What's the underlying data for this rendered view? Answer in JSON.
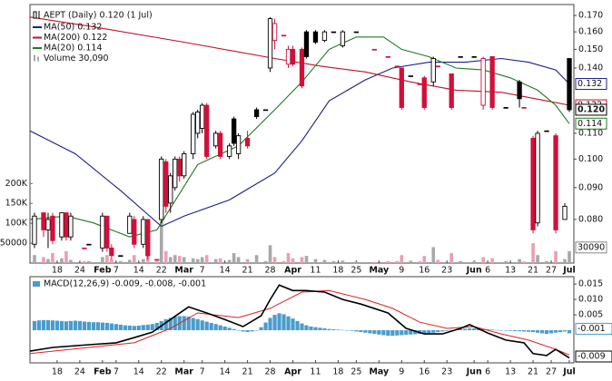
{
  "chart_data": [
    {
      "type": "candlestick",
      "title": "AEPT (Daily) 0.120 (1 Jul)",
      "log_scale": true,
      "up_color": "#000000",
      "down_color": "#d0103a",
      "last_label": "0.120",
      "x": [
        -5,
        -3,
        -2,
        -1,
        1,
        2,
        3,
        6,
        7,
        10,
        11,
        12,
        14,
        16,
        17,
        19,
        20,
        22,
        23,
        24,
        25,
        26,
        27,
        28,
        30,
        31,
        32,
        33,
        35,
        36,
        38,
        39,
        40,
        42,
        44,
        46,
        47,
        48,
        50,
        51,
        52,
        54,
        55,
        57,
        59,
        61,
        63,
        66,
        70,
        73,
        75,
        76,
        78,
        80,
        81,
        83,
        84,
        87,
        89,
        92,
        94,
        96,
        99,
        102,
        103,
        105,
        106,
        108,
        110,
        112,
        113
      ],
      "open": [
        0.073,
        0.082,
        0.077,
        0.081,
        0.075,
        0.082,
        0.075,
        0.072,
        0.073,
        0.072,
        0.081,
        0.072,
        0.07,
        0.076,
        0.08,
        0.073,
        0.08,
        0.069,
        0.08,
        0.099,
        0.085,
        0.09,
        0.1,
        0.094,
        0.102,
        0.11,
        0.112,
        0.122,
        0.105,
        0.11,
        0.101,
        0.116,
        0.102,
        0.108,
        0.12,
        0.12,
        0.14,
        0.155,
        0.158,
        0.142,
        0.15,
        0.15,
        0.16,
        0.16,
        0.155,
        0.16,
        0.152,
        0.16,
        0.15,
        0.146,
        0.141,
        0.14,
        0.136,
        0.132,
        0.135,
        0.133,
        0.141,
        0.137,
        0.146,
        0.146,
        0.122,
        0.146,
        0.121,
        0.133,
        0.121,
        0.108,
        0.079,
        0.111,
        0.109,
        0.08,
        0.145
      ],
      "high": [
        0.082,
        0.082,
        0.082,
        0.082,
        0.082,
        0.082,
        0.082,
        0.072,
        0.073,
        0.082,
        0.081,
        0.073,
        0.07,
        0.082,
        0.081,
        0.081,
        0.08,
        0.069,
        0.101,
        0.1,
        0.095,
        0.101,
        0.101,
        0.103,
        0.119,
        0.12,
        0.123,
        0.123,
        0.111,
        0.111,
        0.106,
        0.117,
        0.11,
        0.111,
        0.121,
        0.12,
        0.169,
        0.168,
        0.158,
        0.152,
        0.152,
        0.151,
        0.161,
        0.161,
        0.161,
        0.16,
        0.161,
        0.16,
        0.15,
        0.146,
        0.141,
        0.14,
        0.136,
        0.132,
        0.136,
        0.146,
        0.141,
        0.137,
        0.146,
        0.146,
        0.146,
        0.146,
        0.121,
        0.134,
        0.121,
        0.109,
        0.111,
        0.111,
        0.11,
        0.085,
        0.145
      ],
      "low": [
        0.072,
        0.075,
        0.072,
        0.073,
        0.074,
        0.074,
        0.074,
        0.072,
        0.073,
        0.071,
        0.071,
        0.069,
        0.07,
        0.076,
        0.072,
        0.072,
        0.069,
        0.069,
        0.079,
        0.082,
        0.082,
        0.089,
        0.092,
        0.093,
        0.1,
        0.108,
        0.11,
        0.1,
        0.104,
        0.1,
        0.1,
        0.105,
        0.1,
        0.104,
        0.116,
        0.12,
        0.138,
        0.15,
        0.158,
        0.14,
        0.141,
        0.13,
        0.145,
        0.153,
        0.154,
        0.16,
        0.151,
        0.16,
        0.15,
        0.146,
        0.141,
        0.12,
        0.136,
        0.132,
        0.12,
        0.131,
        0.141,
        0.12,
        0.146,
        0.146,
        0.12,
        0.12,
        0.121,
        0.121,
        0.121,
        0.076,
        0.078,
        0.111,
        0.076,
        0.08,
        0.119
      ],
      "close": [
        0.081,
        0.077,
        0.08,
        0.074,
        0.082,
        0.075,
        0.081,
        0.072,
        0.073,
        0.081,
        0.072,
        0.07,
        0.07,
        0.081,
        0.073,
        0.08,
        0.07,
        0.069,
        0.1,
        0.084,
        0.094,
        0.1,
        0.094,
        0.102,
        0.118,
        0.119,
        0.122,
        0.101,
        0.11,
        0.101,
        0.105,
        0.106,
        0.109,
        0.105,
        0.117,
        0.12,
        0.168,
        0.165,
        0.158,
        0.15,
        0.142,
        0.131,
        0.146,
        0.154,
        0.16,
        0.16,
        0.16,
        0.16,
        0.15,
        0.146,
        0.141,
        0.121,
        0.136,
        0.132,
        0.121,
        0.145,
        0.141,
        0.121,
        0.146,
        0.146,
        0.145,
        0.121,
        0.121,
        0.125,
        0.121,
        0.077,
        0.11,
        0.111,
        0.077,
        0.084,
        0.12
      ],
      "volume_label": "Volume 30,090",
      "volume": [
        20000,
        15000,
        10000,
        25000,
        12000,
        30000,
        8000,
        5000,
        5000,
        15000,
        20000,
        10000,
        5000,
        8000,
        20000,
        10000,
        25000,
        5000,
        105000,
        30000,
        15000,
        20000,
        18000,
        15000,
        12000,
        10000,
        15000,
        20000,
        10000,
        12000,
        8000,
        25000,
        15000,
        10000,
        20000,
        5000,
        45000,
        15000,
        5000,
        25000,
        12000,
        15000,
        18000,
        10000,
        8000,
        5000,
        6000,
        4000,
        3000,
        5000,
        5000,
        20000,
        6000,
        5000,
        18000,
        40000,
        8000,
        25000,
        5000,
        4000,
        15000,
        12000,
        5000,
        10000,
        4000,
        50000,
        20000,
        5000,
        30000,
        10000,
        30090
      ],
      "volume_last_label": "30090",
      "volume_up_color": "#a8a8a8",
      "volume_down_color": "#e8a0b0",
      "volume_ylim": [
        0,
        650000
      ],
      "volume_yticks": [
        {
          "value": 200000,
          "label": "200K"
        },
        {
          "value": 150000,
          "label": "150K"
        },
        {
          "value": 100000,
          "label": "100K"
        },
        50000
      ],
      "overlays": [
        {
          "name": "MA(50) 0.132",
          "color": "#1c1c8c",
          "last_label": "0.132",
          "x": [
            -6,
            4,
            14,
            23,
            28,
            38,
            48,
            54,
            60,
            68,
            74,
            82,
            90,
            98,
            104,
            110,
            113
          ],
          "values": [
            0.111,
            0.102,
            0.089,
            0.078,
            0.081,
            0.086,
            0.095,
            0.107,
            0.124,
            0.134,
            0.14,
            0.143,
            0.143,
            0.145,
            0.143,
            0.139,
            0.132
          ]
        },
        {
          "name": "MA(200) 0.122",
          "color": "#c0102c",
          "last_label": "0.122",
          "x": [
            -6,
            8,
            28,
            48,
            58,
            68,
            78,
            88,
            98,
            108,
            113
          ],
          "values": [
            0.169,
            0.163,
            0.154,
            0.145,
            0.141,
            0.138,
            0.133,
            0.129,
            0.128,
            0.124,
            0.122
          ]
        },
        {
          "name": "MA(20) 0.114",
          "color": "#1e7a1e",
          "last_label": "0.114",
          "x": [
            -6,
            2,
            8,
            16,
            22,
            31,
            40,
            48,
            54,
            60,
            66,
            72,
            76,
            82,
            88,
            94,
            100,
            106,
            110,
            113
          ],
          "values": [
            0.08,
            0.081,
            0.079,
            0.075,
            0.077,
            0.098,
            0.105,
            0.12,
            0.133,
            0.15,
            0.157,
            0.157,
            0.15,
            0.146,
            0.14,
            0.139,
            0.135,
            0.129,
            0.122,
            0.114
          ]
        }
      ],
      "xlim": [
        -6,
        114
      ],
      "xticks": [
        {
          "value": 0,
          "label": "18"
        },
        {
          "value": 5,
          "label": "24"
        },
        {
          "value": 10,
          "label": "Feb"
        },
        {
          "value": 13,
          "label": "7"
        },
        {
          "value": 18,
          "label": "14"
        },
        {
          "value": 23,
          "label": "22"
        },
        {
          "value": 28,
          "label": "Mar"
        },
        {
          "value": 32,
          "label": "7"
        },
        {
          "value": 37,
          "label": "14"
        },
        {
          "value": 42,
          "label": "21"
        },
        {
          "value": 47,
          "label": "28"
        },
        {
          "value": 52,
          "label": "Apr"
        },
        {
          "value": 57,
          "label": "11"
        },
        {
          "value": 62,
          "label": "18"
        },
        {
          "value": 66,
          "label": "25"
        },
        {
          "value": 71,
          "label": "May"
        },
        {
          "value": 76,
          "label": "9"
        },
        {
          "value": 81,
          "label": "16"
        },
        {
          "value": 86,
          "label": "23"
        },
        {
          "value": 92,
          "label": "Jun"
        },
        {
          "value": 95,
          "label": "6"
        },
        {
          "value": 100,
          "label": "13"
        },
        {
          "value": 105,
          "label": "21"
        },
        {
          "value": 109,
          "label": "27"
        },
        {
          "value": 113,
          "label": "Jul"
        }
      ],
      "ylim": [
        0.0681,
        0.177
      ],
      "yticks": [
        {
          "value": 0.17,
          "label": "0.170"
        },
        {
          "value": 0.16,
          "label": "0.160"
        },
        {
          "value": 0.15,
          "label": "0.150"
        },
        {
          "value": 0.14,
          "label": "0.140"
        },
        {
          "value": 0.11,
          "label": "0.110"
        },
        {
          "value": 0.1,
          "label": "0.100"
        },
        {
          "value": 0.09,
          "label": "0.090"
        },
        {
          "value": 0.08,
          "label": "0.080"
        }
      ]
    },
    {
      "type": "macd",
      "title": "MACD(12,26,9) -0.009, -0.008, -0.001",
      "series": [
        {
          "color": "#000000",
          "last_label": "-0.009",
          "x": [
            -6,
            -1,
            7,
            13,
            17,
            21,
            25,
            29,
            33,
            37,
            41,
            45,
            47,
            49,
            52,
            55,
            59,
            63,
            67,
            73,
            77,
            81,
            85,
            89,
            91,
            95,
            99,
            103,
            105,
            108,
            110,
            113
          ],
          "values": [
            -0.0068,
            -0.0056,
            -0.0047,
            -0.0041,
            -0.0024,
            -0.0006,
            0.0035,
            0.0076,
            0.0056,
            0.0035,
            0.0012,
            0.0047,
            0.01,
            0.0147,
            0.0129,
            0.0129,
            0.0124,
            0.01,
            0.0085,
            0.0056,
            0.0006,
            -0.0012,
            -0.0012,
            0.0006,
            0.0018,
            -0.0009,
            -0.0032,
            -0.0041,
            -0.0076,
            -0.0082,
            -0.0062,
            -0.009
          ]
        },
        {
          "color": "#e0201c",
          "x": [
            -6,
            7,
            17,
            25,
            31,
            40,
            47,
            54,
            60,
            68,
            74,
            80,
            86,
            92,
            98,
            104,
            110,
            113
          ],
          "values": [
            -0.0076,
            -0.0056,
            -0.0041,
            0.0006,
            0.0056,
            0.0041,
            0.0071,
            0.0124,
            0.0129,
            0.01,
            0.0071,
            0.0026,
            0.0006,
            0.0012,
            -0.0012,
            -0.0032,
            -0.0062,
            -0.008
          ]
        }
      ],
      "histogram": {
        "color": "#4a9ccc",
        "last_label": "-0.001",
        "x": [
          -5,
          -4,
          -3,
          -2,
          -1,
          0,
          1,
          2,
          3,
          4,
          5,
          6,
          7,
          8,
          9,
          10,
          11,
          12,
          13,
          14,
          15,
          16,
          17,
          18,
          19,
          20,
          21,
          22,
          23,
          24,
          25,
          26,
          27,
          28,
          29,
          30,
          31,
          32,
          33,
          34,
          35,
          36,
          37,
          38,
          39,
          40,
          41,
          42,
          43,
          44,
          45,
          46,
          47,
          48,
          49,
          50,
          51,
          52,
          53,
          54,
          55,
          56,
          57,
          58,
          59,
          60,
          61,
          62,
          63,
          64,
          65,
          66,
          67,
          68,
          69,
          70,
          71,
          72,
          73,
          74,
          75,
          76,
          77,
          78,
          79,
          80,
          81,
          82,
          83,
          84,
          85,
          86,
          87,
          88,
          89,
          90,
          91,
          92,
          93,
          94,
          95,
          96,
          97,
          98,
          99,
          100,
          101,
          102,
          103,
          104,
          105,
          106,
          107,
          108,
          109,
          110,
          111,
          112,
          113
        ],
        "values": [
          0.003,
          0.0032,
          0.0033,
          0.0033,
          0.0032,
          0.0031,
          0.003,
          0.0029,
          0.003,
          0.0031,
          0.003,
          0.0028,
          0.0027,
          0.0026,
          0.0026,
          0.0025,
          0.0024,
          0.0022,
          0.002,
          0.0018,
          0.0016,
          0.0015,
          0.0014,
          0.0015,
          0.0017,
          0.0018,
          0.002,
          0.0024,
          0.003,
          0.0036,
          0.004,
          0.0044,
          0.0046,
          0.0046,
          0.0044,
          0.004,
          0.0036,
          0.0032,
          0.0028,
          0.0024,
          0.002,
          0.0016,
          0.0012,
          0.0008,
          0.0004,
          0.0,
          -0.0004,
          -0.0006,
          -0.0004,
          0.0,
          0.001,
          0.0025,
          0.004,
          0.005,
          0.0055,
          0.0052,
          0.0045,
          0.0038,
          0.003,
          0.0022,
          0.0016,
          0.0012,
          0.001,
          0.0008,
          0.0006,
          0.0004,
          0.0003,
          0.0002,
          0.0001,
          0.0,
          -0.0002,
          -0.0004,
          -0.0006,
          -0.0008,
          -0.001,
          -0.0012,
          -0.0014,
          -0.0016,
          -0.0018,
          -0.0018,
          -0.0017,
          -0.0016,
          -0.0015,
          -0.0014,
          -0.0013,
          -0.0012,
          -0.0011,
          -0.001,
          -0.0008,
          -0.0006,
          -0.0004,
          -0.0002,
          0.0,
          0.0002,
          0.0004,
          0.0005,
          0.0006,
          0.0006,
          0.0005,
          0.0004,
          0.0003,
          0.0002,
          0.0001,
          0.0,
          -0.0001,
          -0.0002,
          -0.0003,
          -0.0003,
          -0.0004,
          -0.0005,
          -0.0006,
          -0.0008,
          -0.001,
          -0.0012,
          -0.001,
          -0.0008,
          -0.0006,
          -0.0004,
          -0.001
        ]
      },
      "ylim": [
        -0.0106,
        0.0174
      ],
      "yticks": [
        {
          "value": 0.015,
          "label": "0.015"
        },
        {
          "value": 0.01,
          "label": "0.010"
        },
        {
          "value": 0.005,
          "label": "0.005"
        }
      ]
    }
  ]
}
